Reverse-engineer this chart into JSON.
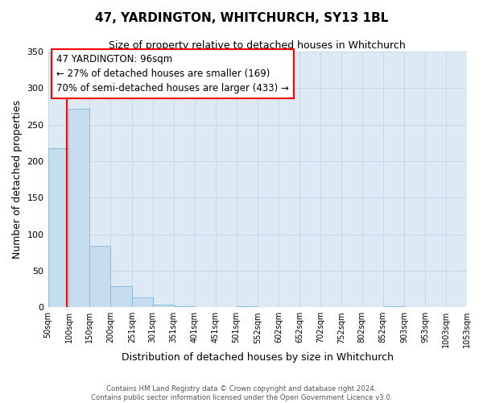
{
  "title": "47, YARDINGTON, WHITCHURCH, SY13 1BL",
  "subtitle": "Size of property relative to detached houses in Whitchurch",
  "bar_heights": [
    218,
    272,
    84,
    29,
    13,
    4,
    1,
    0,
    0,
    1,
    0,
    0,
    0,
    0,
    0,
    0,
    1,
    0,
    0,
    0
  ],
  "bin_edges": [
    50,
    100,
    150,
    200,
    251,
    301,
    351,
    401,
    451,
    501,
    552,
    602,
    652,
    702,
    752,
    802,
    852,
    903,
    953,
    1003,
    1053
  ],
  "bin_labels": [
    "50sqm",
    "100sqm",
    "150sqm",
    "200sqm",
    "251sqm",
    "301sqm",
    "351sqm",
    "401sqm",
    "451sqm",
    "501sqm",
    "552sqm",
    "602sqm",
    "652sqm",
    "702sqm",
    "752sqm",
    "802sqm",
    "852sqm",
    "903sqm",
    "953sqm",
    "1003sqm",
    "1053sqm"
  ],
  "bar_color": "#c5ddef",
  "bar_edge_color": "#8bbbd9",
  "grid_color": "#c5d8e8",
  "background_color": "#ddeaf5",
  "red_line_x": 96,
  "annotation_title": "47 YARDINGTON: 96sqm",
  "annotation_line1": "← 27% of detached houses are smaller (169)",
  "annotation_line2": "70% of semi-detached houses are larger (433) →",
  "xlabel": "Distribution of detached houses by size in Whitchurch",
  "ylabel": "Number of detached properties",
  "ylim": [
    0,
    350
  ],
  "yticks": [
    0,
    50,
    100,
    150,
    200,
    250,
    300,
    350
  ],
  "footer1": "Contains HM Land Registry data © Crown copyright and database right 2024.",
  "footer2": "Contains public sector information licensed under the Open Government Licence v3.0."
}
